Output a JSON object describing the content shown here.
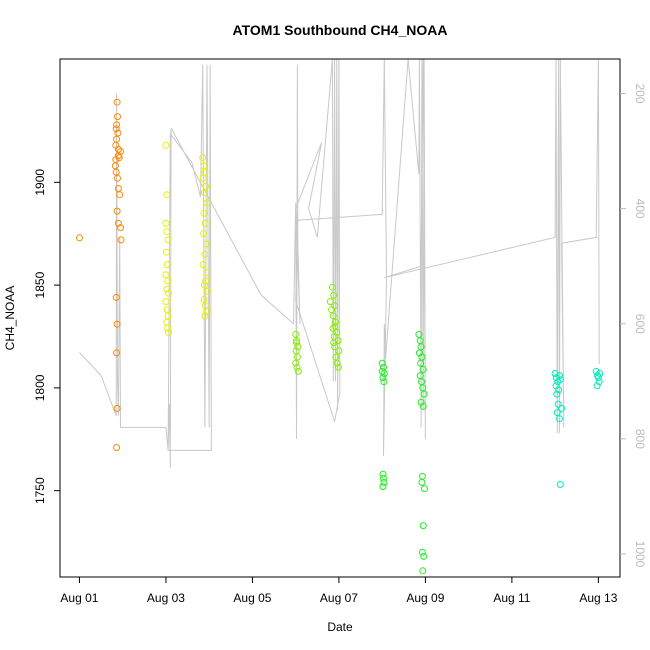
{
  "chart_data": {
    "type": "scatter",
    "title": "ATOM1 Southbound CH4_NOAA",
    "xlabel": "Date",
    "ylabel": "CH4_NOAA",
    "x_ticks": [
      {
        "value": 1,
        "label": "Aug 01"
      },
      {
        "value": 3,
        "label": "Aug 03"
      },
      {
        "value": 5,
        "label": "Aug 05"
      },
      {
        "value": 7,
        "label": "Aug 07"
      },
      {
        "value": 9,
        "label": "Aug 09"
      },
      {
        "value": 11,
        "label": "Aug 11"
      },
      {
        "value": 13,
        "label": "Aug 13"
      }
    ],
    "y_ticks": [
      1750,
      1800,
      1850,
      1900
    ],
    "y2_ticks": [
      200,
      400,
      600,
      800,
      1000
    ],
    "xlim": [
      0.55,
      13.5
    ],
    "ylim": [
      1708,
      1960
    ],
    "y2lim": [
      1040,
      140
    ],
    "y2_color": "#bbbbbb",
    "grid": false,
    "series": [
      {
        "color": "#ff8800",
        "points": [
          [
            1.0,
            1873
          ],
          [
            1.87,
            1939
          ],
          [
            1.88,
            1932
          ],
          [
            1.85,
            1926
          ],
          [
            1.86,
            1921
          ],
          [
            1.84,
            1918
          ],
          [
            1.9,
            1916
          ],
          [
            1.92,
            1912
          ],
          [
            1.83,
            1908
          ],
          [
            1.85,
            1905
          ],
          [
            1.88,
            1902
          ],
          [
            1.9,
            1897
          ],
          [
            1.93,
            1894
          ],
          [
            1.87,
            1886
          ],
          [
            1.9,
            1880
          ],
          [
            1.95,
            1878
          ],
          [
            1.96,
            1872
          ],
          [
            1.84,
            1911
          ],
          [
            1.9,
            1913
          ],
          [
            1.95,
            1915
          ],
          [
            1.86,
            1928
          ],
          [
            1.89,
            1924
          ],
          [
            1.85,
            1844
          ],
          [
            1.87,
            1831
          ],
          [
            1.86,
            1817
          ],
          [
            1.87,
            1790
          ],
          [
            1.86,
            1771
          ]
        ]
      },
      {
        "color": "#e8f000",
        "points": [
          [
            3.0,
            1918
          ],
          [
            3.02,
            1894
          ],
          [
            3.0,
            1880
          ],
          [
            3.02,
            1876
          ],
          [
            3.05,
            1872
          ],
          [
            3.01,
            1866
          ],
          [
            3.03,
            1860
          ],
          [
            3.0,
            1855
          ],
          [
            3.04,
            1852
          ],
          [
            3.02,
            1848
          ],
          [
            3.06,
            1846
          ],
          [
            3.0,
            1842
          ],
          [
            3.03,
            1838
          ],
          [
            3.05,
            1835
          ],
          [
            3.02,
            1832
          ],
          [
            3.04,
            1829
          ],
          [
            3.06,
            1827
          ],
          [
            3.85,
            1912
          ],
          [
            3.88,
            1908
          ],
          [
            3.9,
            1905
          ],
          [
            3.86,
            1902
          ],
          [
            3.92,
            1898
          ],
          [
            3.89,
            1895
          ],
          [
            3.95,
            1890
          ],
          [
            3.88,
            1885
          ],
          [
            3.91,
            1880
          ],
          [
            3.87,
            1875
          ],
          [
            3.93,
            1870
          ],
          [
            3.9,
            1865
          ],
          [
            3.86,
            1860
          ],
          [
            3.94,
            1856
          ],
          [
            3.92,
            1852
          ],
          [
            3.89,
            1850
          ],
          [
            3.96,
            1847
          ],
          [
            3.88,
            1843
          ],
          [
            3.91,
            1840
          ],
          [
            3.95,
            1837
          ],
          [
            3.9,
            1835
          ]
        ]
      },
      {
        "color": "#88ee00",
        "points": [
          [
            6.0,
            1826
          ],
          [
            6.02,
            1823
          ],
          [
            6.05,
            1820
          ],
          [
            6.01,
            1818
          ],
          [
            6.04,
            1815
          ],
          [
            6.0,
            1812
          ],
          [
            6.03,
            1810
          ],
          [
            6.06,
            1808
          ],
          [
            6.02,
            1822
          ],
          [
            6.85,
            1849
          ],
          [
            6.88,
            1845
          ],
          [
            6.8,
            1842
          ],
          [
            6.9,
            1840
          ],
          [
            6.83,
            1838
          ],
          [
            6.87,
            1835
          ],
          [
            6.92,
            1832
          ],
          [
            6.86,
            1829
          ],
          [
            6.95,
            1827
          ],
          [
            6.89,
            1825
          ],
          [
            6.98,
            1823
          ],
          [
            6.9,
            1820
          ],
          [
            7.0,
            1818
          ],
          [
            6.93,
            1815
          ],
          [
            6.96,
            1812
          ],
          [
            6.99,
            1810
          ],
          [
            6.88,
            1822
          ],
          [
            6.91,
            1830
          ]
        ]
      },
      {
        "color": "#22ee22",
        "points": [
          [
            8.0,
            1812
          ],
          [
            8.03,
            1810
          ],
          [
            8.05,
            1807
          ],
          [
            8.02,
            1805
          ],
          [
            8.04,
            1803
          ],
          [
            8.0,
            1808
          ],
          [
            8.02,
            1758
          ],
          [
            8.03,
            1756
          ],
          [
            8.04,
            1754
          ],
          [
            8.02,
            1752
          ],
          [
            8.85,
            1826
          ],
          [
            8.88,
            1823
          ],
          [
            8.9,
            1820
          ],
          [
            8.86,
            1817
          ],
          [
            8.92,
            1815
          ],
          [
            8.89,
            1812
          ],
          [
            8.95,
            1809
          ],
          [
            8.88,
            1806
          ],
          [
            8.91,
            1803
          ],
          [
            8.94,
            1800
          ],
          [
            8.97,
            1797
          ],
          [
            8.9,
            1793
          ],
          [
            8.95,
            1791
          ],
          [
            8.93,
            1757
          ],
          [
            8.92,
            1754
          ],
          [
            8.98,
            1751
          ],
          [
            8.95,
            1733
          ],
          [
            8.93,
            1720
          ],
          [
            8.96,
            1718
          ],
          [
            8.94,
            1711
          ]
        ]
      },
      {
        "color": "#00eebb",
        "points": [
          [
            12.0,
            1807
          ],
          [
            12.03,
            1805
          ],
          [
            12.06,
            1803
          ],
          [
            12.02,
            1801
          ],
          [
            12.08,
            1799
          ],
          [
            12.04,
            1797
          ],
          [
            12.1,
            1806
          ],
          [
            12.12,
            1804
          ],
          [
            12.07,
            1792
          ],
          [
            12.05,
            1788
          ],
          [
            12.15,
            1790
          ],
          [
            12.1,
            1785
          ],
          [
            12.12,
            1753
          ],
          [
            12.95,
            1808
          ],
          [
            12.98,
            1806
          ],
          [
            13.0,
            1805
          ],
          [
            13.02,
            1803
          ],
          [
            12.97,
            1801
          ],
          [
            13.03,
            1807
          ]
        ]
      }
    ],
    "altitude_line": {
      "color": "#c8c8c8",
      "points": [
        [
          1.0,
          650
        ],
        [
          1.5,
          690
        ],
        [
          1.85,
          760
        ],
        [
          1.86,
          200
        ],
        [
          1.88,
          700
        ],
        [
          1.9,
          760
        ],
        [
          1.93,
          450
        ],
        [
          1.95,
          780
        ],
        [
          3.0,
          780
        ],
        [
          3.05,
          820
        ],
        [
          3.1,
          270
        ],
        [
          3.6,
          320
        ],
        [
          3.8,
          380
        ],
        [
          3.85,
          150
        ],
        [
          3.9,
          780
        ],
        [
          3.95,
          150
        ],
        [
          4.0,
          780
        ],
        [
          4.02,
          150
        ],
        [
          4.05,
          820
        ],
        [
          3.9,
          820
        ],
        [
          3.05,
          820
        ],
        [
          3.08,
          740
        ],
        [
          3.1,
          850
        ],
        [
          3.12,
          260
        ],
        [
          5.2,
          550
        ],
        [
          5.95,
          600
        ],
        [
          6.0,
          390
        ],
        [
          6.02,
          800
        ],
        [
          6.04,
          150
        ],
        [
          6.05,
          460
        ],
        [
          6.1,
          600
        ],
        [
          6.0,
          400
        ],
        [
          6.6,
          285
        ],
        [
          6.3,
          400
        ],
        [
          6.5,
          450
        ],
        [
          6.85,
          140
        ],
        [
          6.87,
          700
        ],
        [
          6.9,
          140
        ],
        [
          6.92,
          700
        ],
        [
          6.95,
          140
        ],
        [
          6.97,
          750
        ],
        [
          7.0,
          140
        ],
        [
          7.02,
          720
        ],
        [
          6.9,
          770
        ],
        [
          6.0,
          560
        ],
        [
          6.05,
          420
        ],
        [
          8.0,
          410
        ],
        [
          8.05,
          140
        ],
        [
          8.1,
          520
        ],
        [
          8.03,
          830
        ],
        [
          8.05,
          600
        ],
        [
          8.08,
          660
        ],
        [
          8.6,
          140
        ],
        [
          8.85,
          340
        ],
        [
          8.86,
          140
        ],
        [
          8.9,
          780
        ],
        [
          8.92,
          140
        ],
        [
          8.95,
          750
        ],
        [
          8.97,
          140
        ],
        [
          9.0,
          800
        ],
        [
          8.95,
          140
        ],
        [
          8.9,
          500
        ],
        [
          8.05,
          520
        ],
        [
          12.0,
          450
        ],
        [
          12.02,
          140
        ],
        [
          12.05,
          790
        ],
        [
          12.08,
          140
        ],
        [
          12.1,
          790
        ],
        [
          12.12,
          140
        ],
        [
          12.2,
          780
        ],
        [
          12.15,
          460
        ],
        [
          12.95,
          450
        ],
        [
          13.0,
          140
        ],
        [
          13.02,
          670
        ]
      ]
    }
  }
}
